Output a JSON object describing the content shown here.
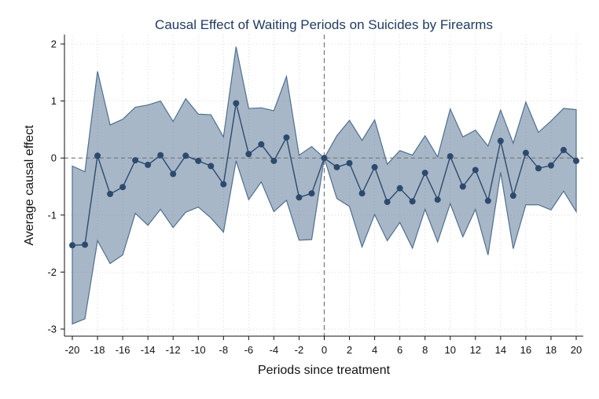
{
  "chart_data": {
    "type": "line",
    "title": "Causal Effect of Waiting Periods on Suicides by Firearms",
    "xlabel": "Periods since treatment",
    "ylabel": "Average causal effect",
    "xlim": [
      -20,
      20
    ],
    "ylim": [
      -3,
      2
    ],
    "x_ticks": [
      -20,
      -18,
      -16,
      -14,
      -12,
      -10,
      -8,
      -6,
      -4,
      -2,
      0,
      2,
      4,
      6,
      8,
      10,
      12,
      14,
      16,
      18,
      20
    ],
    "y_ticks": [
      -3,
      -2,
      -1,
      0,
      1,
      2
    ],
    "grid": true,
    "reference_lines": {
      "x": 0,
      "y": 0,
      "style": "dashed"
    },
    "colors": {
      "line": "#2c4a6e",
      "band": "#4f6f8f",
      "grid": "#cfcfcf",
      "reference": "#777777"
    },
    "x": [
      -20,
      -19,
      -18,
      -17,
      -16,
      -15,
      -14,
      -13,
      -12,
      -11,
      -10,
      -9,
      -8,
      -7,
      -6,
      -5,
      -4,
      -3,
      -2,
      -1,
      0,
      1,
      2,
      3,
      4,
      5,
      6,
      7,
      8,
      9,
      10,
      11,
      12,
      13,
      14,
      15,
      16,
      17,
      18,
      19,
      20
    ],
    "series": [
      {
        "name": "",
        "values": [
          -1.53,
          -1.52,
          0.04,
          -0.63,
          -0.51,
          -0.04,
          -0.12,
          0.05,
          -0.28,
          0.04,
          -0.05,
          -0.14,
          -0.46,
          0.96,
          0.07,
          0.24,
          -0.05,
          0.36,
          -0.69,
          -0.62,
          0.0,
          -0.16,
          -0.09,
          -0.62,
          -0.16,
          -0.77,
          -0.53,
          -0.76,
          -0.26,
          -0.73,
          0.03,
          -0.5,
          -0.21,
          -0.75,
          0.3,
          -0.66,
          0.09,
          -0.18,
          -0.13,
          0.14,
          -0.05
        ]
      }
    ],
    "ci_lower": [
      -2.91,
      -2.82,
      -1.45,
      -1.85,
      -1.7,
      -0.97,
      -1.18,
      -0.9,
      -1.22,
      -0.95,
      -0.86,
      -1.05,
      -1.3,
      -0.05,
      -0.73,
      -0.42,
      -0.94,
      -0.74,
      -1.44,
      -1.43,
      0.0,
      -0.71,
      -0.85,
      -1.56,
      -0.99,
      -1.45,
      -1.13,
      -1.58,
      -0.9,
      -1.47,
      -0.8,
      -1.38,
      -0.9,
      -1.7,
      -0.25,
      -1.59,
      -0.82,
      -0.82,
      -0.91,
      -0.58,
      -0.94
    ],
    "ci_upper": [
      -0.14,
      -0.24,
      1.52,
      0.58,
      0.68,
      0.89,
      0.93,
      1.0,
      0.64,
      1.04,
      0.77,
      0.76,
      0.37,
      1.95,
      0.87,
      0.88,
      0.83,
      1.43,
      0.05,
      0.2,
      0.0,
      0.39,
      0.66,
      0.31,
      0.67,
      -0.11,
      0.13,
      0.05,
      0.39,
      0.02,
      0.86,
      0.37,
      0.49,
      0.21,
      0.84,
      0.26,
      0.98,
      0.45,
      0.65,
      0.87,
      0.85
    ]
  }
}
